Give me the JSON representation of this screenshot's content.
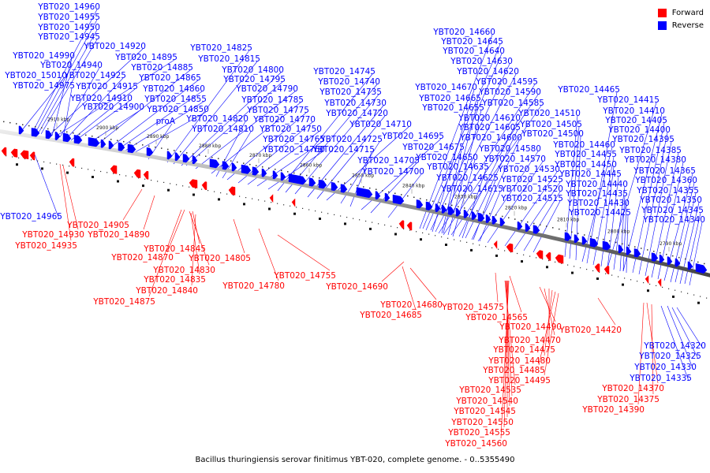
{
  "legend": {
    "forward": {
      "label": "Forward",
      "color": "#ff0000"
    },
    "reverse": {
      "label": "Reverse",
      "color": "#0000ff"
    }
  },
  "caption": "Bacillus thuringiensis serovar finitimus YBT-020, complete genome. - 0..5355490",
  "ticks": [
    "2910 kbp",
    "2900 kbp",
    "2890 kbp",
    "2880 kbp",
    "2870 kbp",
    "2860 kbp",
    "2850 kbp",
    "2840 kbp",
    "2830 kbp",
    "2820 kbp",
    "2810 kbp",
    "2800 kbp",
    "2790 kbp"
  ],
  "reverse_labels": [
    "YBT020_14960",
    "YBT020_14955",
    "YBT020_14950",
    "YBT020_14945",
    "YBT020_14920",
    "YBT020_14990",
    "YBT020_14895",
    "YBT020_14940",
    "YBT020_14885",
    "YBT020_15010",
    "YBT020_14925",
    "YBT020_14865",
    "YBT020_14975",
    "YBT020_14915",
    "YBT020_14860",
    "YBT020_14910",
    "YBT020_14855",
    "YBT020_14900",
    "YBT020_14850",
    "proA",
    "YBT020_14825",
    "YBT020_14815",
    "YBT020_14800",
    "YBT020_14795",
    "YBT020_14790",
    "YBT020_14785",
    "YBT020_14775",
    "YBT020_14820",
    "YBT020_14770",
    "YBT020_14810",
    "YBT020_14750",
    "YBT020_14765",
    "YBT020_14760",
    "YBT020_14745",
    "YBT020_14740",
    "YBT020_14735",
    "YBT020_14730",
    "YBT020_14720",
    "YBT020_14710",
    "YBT020_14725",
    "YBT020_14695",
    "YBT020_14715",
    "YBT020_14705",
    "YBT020_14700",
    "YBT020_14660",
    "YBT020_14645",
    "YBT020_14640",
    "YBT020_14630",
    "YBT020_14620",
    "YBT020_14670",
    "YBT020_14595",
    "YBT020_14665",
    "YBT020_14590",
    "YBT020_14655",
    "YBT020_14585",
    "YBT020_14610",
    "YBT020_14605",
    "YBT020_14600",
    "YBT020_14675",
    "YBT020_14580",
    "YBT020_14650",
    "YBT020_14570",
    "YBT020_14635",
    "YBT020_14530",
    "YBT020_14625",
    "YBT020_14525",
    "YBT020_14615",
    "YBT020_14520",
    "YBT020_14515",
    "YBT020_14510",
    "YBT020_14505",
    "YBT020_14500",
    "YBT020_14465",
    "YBT020_14415",
    "YBT020_14410",
    "YBT020_14405",
    "YBT020_14400",
    "YBT020_14460",
    "YBT020_14395",
    "YBT020_14455",
    "YBT020_14385",
    "YBT020_14450",
    "YBT020_14380",
    "YBT020_14445",
    "YBT020_14365",
    "YBT020_14440",
    "YBT020_14360",
    "YBT020_14435",
    "YBT020_14355",
    "YBT020_14430",
    "YBT020_14350",
    "YBT020_14425",
    "YBT020_14345",
    "YBT020_14340",
    "YBT020_14965",
    "YBT020_14320",
    "YBT020_14325",
    "YBT020_14330",
    "YBT020_14335"
  ],
  "forward_labels": [
    "YBT020_14905",
    "YBT020_14930",
    "YBT020_14890",
    "YBT020_14935",
    "YBT020_14845",
    "YBT020_14870",
    "YBT020_14805",
    "YBT020_14830",
    "YBT020_14835",
    "YBT020_14840",
    "YBT020_14875",
    "YBT020_14755",
    "YBT020_14780",
    "YBT020_14690",
    "YBT020_14680",
    "YBT020_14685",
    "YBT020_14575",
    "YBT020_14565",
    "YBT020_14490",
    "YBT020_14420",
    "YBT020_14470",
    "YBT020_14475",
    "YBT020_14480",
    "YBT020_14485",
    "YBT020_14495",
    "YBT020_14535",
    "YBT020_14540",
    "YBT020_14545",
    "YBT020_14550",
    "YBT020_14555",
    "YBT020_14560",
    "YBT020_14370",
    "YBT020_14375",
    "YBT020_14390"
  ]
}
